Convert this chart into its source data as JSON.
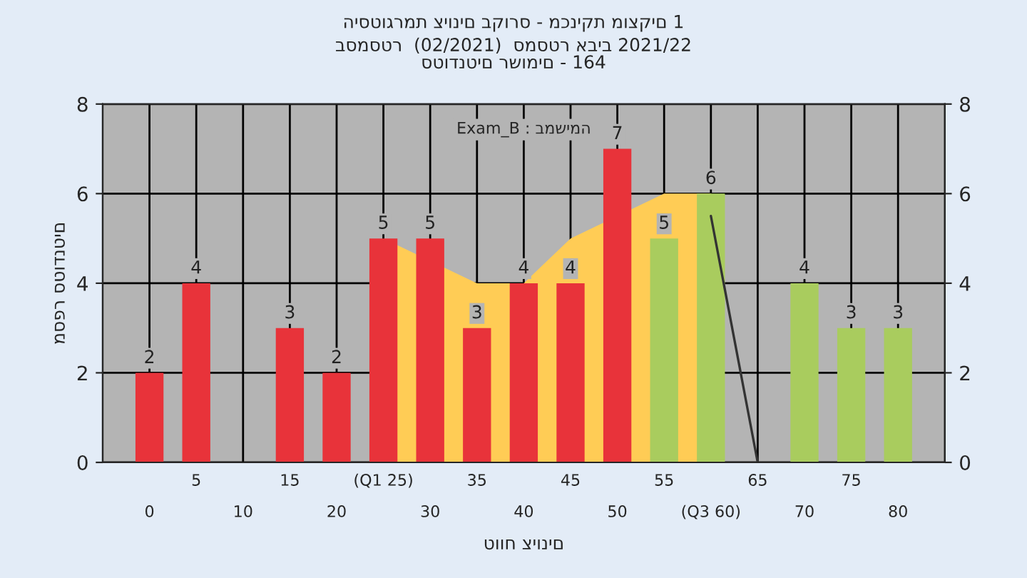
{
  "chart_data": {
    "type": "bar",
    "title": "היסטוגרמת ציונים בקורס - מכניקת מוצקים 1",
    "subtitle": "בסמסטר  (02/2021)  סמסטר אביב 2021/22\nסטודנטים רשומים - 164",
    "xlabel": "טווח ציונים",
    "ylabel": "מספר סטודנטים",
    "annotations": [
      "Exam_B : במשימה"
    ],
    "categories": [
      "0",
      "5",
      "10",
      "15",
      "20",
      "(Q1 25)",
      "30",
      "35",
      "40",
      "45",
      "50",
      "55",
      "(Q3 60)",
      "65",
      "70",
      "75",
      "80"
    ],
    "series": [
      {
        "type": "area",
        "color": "#ffcc55",
        "values": [
          null,
          null,
          null,
          null,
          null,
          5,
          null,
          4,
          4,
          5,
          null,
          6,
          6,
          null,
          null,
          null,
          null
        ]
      },
      {
        "type": "line",
        "color": "#333333",
        "values": [
          null,
          null,
          null,
          null,
          null,
          null,
          null,
          null,
          null,
          null,
          null,
          null,
          5.5,
          0,
          null,
          null,
          null
        ]
      },
      {
        "values": [
          2,
          4,
          0,
          3,
          2,
          5,
          5,
          3,
          4,
          4,
          7,
          5,
          6,
          0,
          4,
          3,
          3
        ],
        "value_labels": [
          "2",
          "4",
          null,
          "3",
          "2",
          "5",
          "5",
          "3",
          "4",
          "4",
          "7",
          "5",
          "6",
          null,
          "4",
          "3",
          "3"
        ],
        "colors": [
          "#e8333a",
          "#e8333a",
          "#e8333a",
          "#e8333a",
          "#e8333a",
          "#e8333a",
          "#e8333a",
          "#e8333a",
          "#e8333a",
          "#e8333a",
          "#e8333a",
          "#a9cc5e",
          "#a9cc5e",
          "#a9cc5e",
          "#a9cc5e",
          "#a9cc5e",
          "#a9cc5e"
        ]
      }
    ],
    "ylim": [
      0,
      8
    ],
    "yticks": [
      0,
      2,
      4,
      6,
      8
    ],
    "y2lim": [
      0,
      8
    ],
    "y2ticks": [
      0,
      2,
      4,
      6,
      8
    ],
    "grid": true
  }
}
